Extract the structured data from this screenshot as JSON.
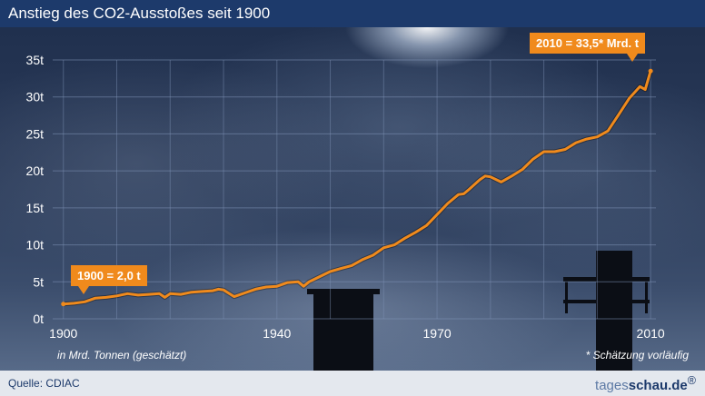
{
  "title": "Anstieg des CO2-Ausstoßes seit 1900",
  "footer": {
    "source": "Quelle: CDIAC",
    "logo_light": "tages",
    "logo_bold": "schau.de",
    "logo_mark": "®"
  },
  "notes": {
    "unit": "in Mrd. Tonnen (geschätzt)",
    "estimate": "* Schätzung vorläufig"
  },
  "callouts": {
    "start": "1900 = 2,0 t",
    "end": "2010 = 33,5* Mrd. t"
  },
  "colors": {
    "line": "#f08a1c",
    "grid": "#7f93b6",
    "text": "#ffffff",
    "header": "#1d3a6b"
  },
  "chart_data": {
    "type": "line",
    "title": "Anstieg des CO2-Ausstoßes seit 1900",
    "xlabel": "",
    "ylabel": "in Mrd. Tonnen (geschätzt)",
    "xlim": [
      1898,
      2011
    ],
    "ylim": [
      0,
      35
    ],
    "x_ticks": [
      1900,
      1940,
      1970,
      2010
    ],
    "y_ticks": [
      0,
      5,
      10,
      15,
      20,
      25,
      30,
      35
    ],
    "y_tick_labels": [
      "0t",
      "5t",
      "10t",
      "15t",
      "20t",
      "25t",
      "30t",
      "35t"
    ],
    "grid": true,
    "series": [
      {
        "x": [
          1900,
          1902,
          1904,
          1906,
          1908,
          1910,
          1912,
          1914,
          1916,
          1918,
          1919,
          1920,
          1922,
          1924,
          1926,
          1928,
          1929,
          1930,
          1932,
          1934,
          1936,
          1938,
          1940,
          1942,
          1944,
          1945,
          1946,
          1948,
          1950,
          1952,
          1954,
          1956,
          1958,
          1960,
          1962,
          1964,
          1966,
          1968,
          1970,
          1972,
          1974,
          1975,
          1976,
          1978,
          1979,
          1980,
          1982,
          1984,
          1986,
          1988,
          1990,
          1992,
          1994,
          1996,
          1998,
          2000,
          2002,
          2004,
          2006,
          2008,
          2009,
          2010
        ],
        "values": [
          2.0,
          2.1,
          2.3,
          2.8,
          2.9,
          3.1,
          3.4,
          3.2,
          3.3,
          3.4,
          2.9,
          3.4,
          3.3,
          3.6,
          3.7,
          3.8,
          4.0,
          3.9,
          3.0,
          3.5,
          4.0,
          4.3,
          4.4,
          4.9,
          5.0,
          4.4,
          5.0,
          5.7,
          6.4,
          6.8,
          7.2,
          8.0,
          8.6,
          9.6,
          10.0,
          10.9,
          11.7,
          12.6,
          14.1,
          15.6,
          16.8,
          16.9,
          17.5,
          18.8,
          19.3,
          19.2,
          18.5,
          19.3,
          20.2,
          21.6,
          22.6,
          22.6,
          22.9,
          23.8,
          24.3,
          24.6,
          25.4,
          27.6,
          29.8,
          31.4,
          31.0,
          33.5
        ]
      }
    ]
  }
}
